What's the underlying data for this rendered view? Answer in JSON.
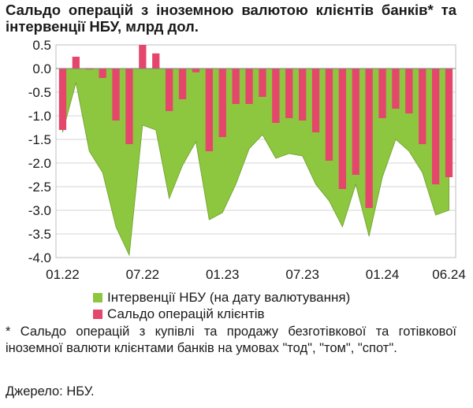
{
  "title": "Сальдо операцій з іноземною валютою клієнтів банків* та інтервенції НБУ, млрд дол.",
  "chart_data": {
    "type": "bar",
    "y_ticks": [
      "0.5",
      "0.0",
      "-0.5",
      "-1.0",
      "-1.5",
      "-2.0",
      "-2.5",
      "-3.0",
      "-3.5",
      "-4.0"
    ],
    "ylim": [
      -4.0,
      0.5
    ],
    "x_tick_labels": [
      {
        "index": 0,
        "label": "01.22"
      },
      {
        "index": 6,
        "label": "07.22"
      },
      {
        "index": 12,
        "label": "01.23"
      },
      {
        "index": 18,
        "label": "07.23"
      },
      {
        "index": 24,
        "label": "01.24"
      },
      {
        "index": 29,
        "label": "06.24"
      }
    ],
    "grid": true,
    "legend_position": "bottom",
    "series": [
      {
        "name": "Інтервенції НБУ (на дату валютування)",
        "type": "area",
        "color": "#8dc63f",
        "values": [
          -1.35,
          -0.3,
          -1.75,
          -2.2,
          -3.35,
          -3.95,
          -1.2,
          -1.3,
          -2.75,
          -2.05,
          -1.55,
          -3.2,
          -3.05,
          -2.45,
          -1.7,
          -1.4,
          -1.9,
          -1.8,
          -1.85,
          -2.45,
          -2.8,
          -3.35,
          -2.45,
          -3.55,
          -2.3,
          -1.5,
          -1.75,
          -2.2,
          -3.1,
          -3.0
        ]
      },
      {
        "name": "Сальдо операцій клієнтів",
        "type": "bar",
        "color": "#e5466c",
        "values": [
          -1.3,
          0.25,
          -0.02,
          -0.2,
          -1.1,
          -1.6,
          0.5,
          0.32,
          -0.9,
          -0.65,
          -0.08,
          -1.75,
          -1.45,
          -0.75,
          -0.75,
          -0.6,
          -1.15,
          -1.05,
          -1.1,
          -1.35,
          -1.95,
          -2.55,
          -2.25,
          -2.95,
          -1.05,
          -0.85,
          -0.95,
          -1.6,
          -2.45,
          -2.3
        ]
      }
    ]
  },
  "footnote": "* Сальдо операцій з купівлі та продажу безготівкової та готівкової іноземної валюти клієнтами банків на умовах \"тод\", \"том\", \"спот\".",
  "source": "Джерело: НБУ."
}
